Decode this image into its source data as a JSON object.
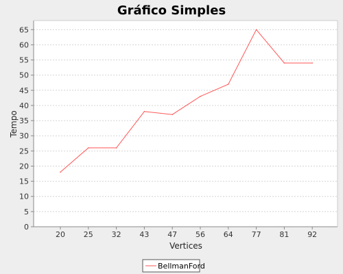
{
  "chart_data": {
    "type": "line",
    "title": "Gráfico Simples",
    "xlabel": "Vertices",
    "ylabel": "Tempo",
    "categories": [
      "20",
      "25",
      "32",
      "43",
      "47",
      "56",
      "64",
      "77",
      "81",
      "92"
    ],
    "series": [
      {
        "name": "BellmanFord",
        "values": [
          18,
          26,
          26,
          38,
          37,
          43,
          47,
          65,
          54,
          54
        ],
        "color": "#ff5555"
      }
    ],
    "ylim": [
      0,
      68
    ],
    "yticks": [
      0,
      5,
      10,
      15,
      20,
      25,
      30,
      35,
      40,
      45,
      50,
      55,
      60,
      65
    ],
    "grid": true,
    "legend_position": "bottom"
  }
}
